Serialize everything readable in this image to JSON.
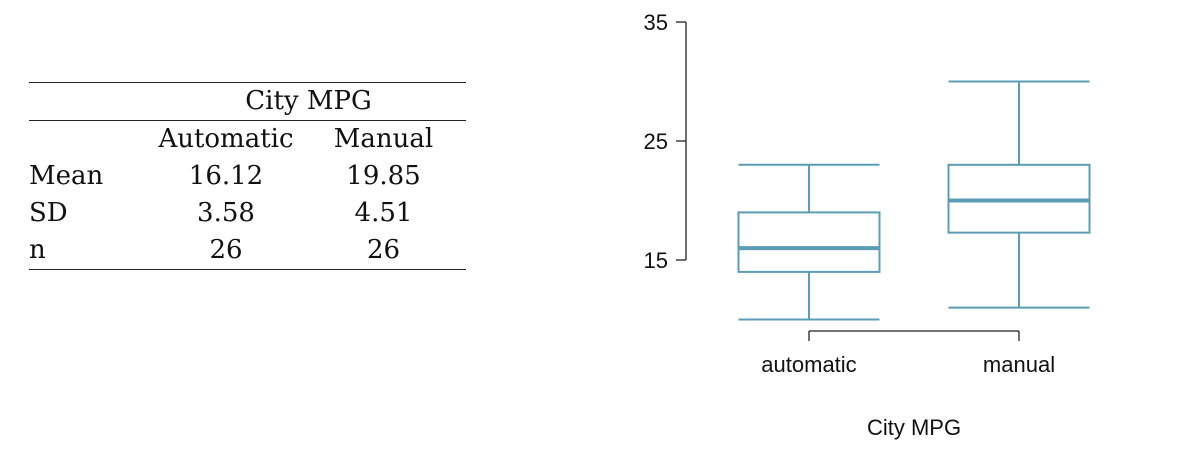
{
  "table": {
    "group_header": "City MPG",
    "columns": [
      "Automatic",
      "Manual"
    ],
    "rows": [
      {
        "label": "Mean",
        "automatic": "16.12",
        "manual": "19.85"
      },
      {
        "label": "SD",
        "automatic": "3.58",
        "manual": "4.51"
      },
      {
        "label": "n",
        "automatic": "26",
        "manual": "26"
      }
    ]
  },
  "chart_data": {
    "type": "boxplot",
    "xlabel": "City MPG",
    "ylabel": "",
    "ylim": [
      10,
      35
    ],
    "yticks": [
      15,
      25,
      35
    ],
    "categories": [
      "automatic",
      "manual"
    ],
    "boxes": [
      {
        "name": "automatic",
        "whisker_low": 10,
        "q1": 14,
        "median": 16,
        "q3": 19,
        "whisker_high": 23
      },
      {
        "name": "manual",
        "whisker_low": 11,
        "q1": 17.3,
        "median": 20,
        "q3": 23,
        "whisker_high": 30
      }
    ],
    "color": "#5b9db4"
  }
}
